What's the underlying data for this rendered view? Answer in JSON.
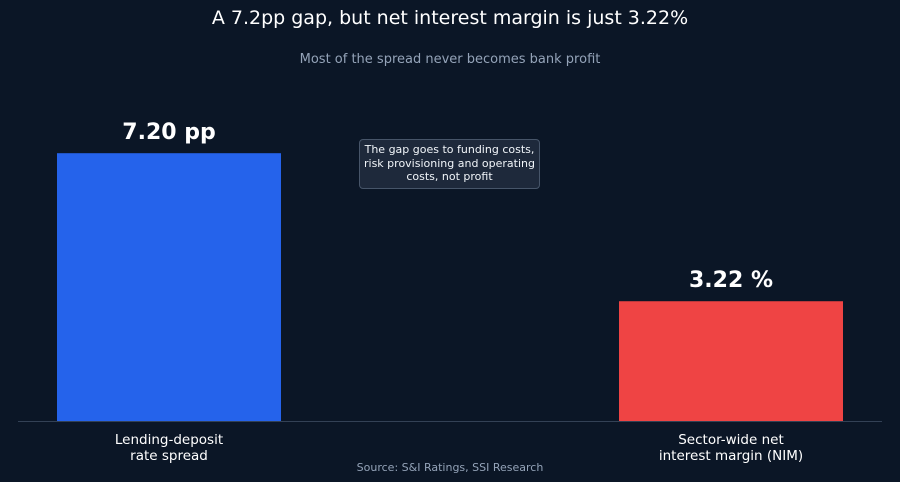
{
  "chart_data": {
    "type": "bar",
    "title": "A 7.2pp gap, but net interest margin is just 3.22%",
    "subtitle": "Most of the spread never becomes bank profit",
    "categories": [
      [
        "Lending-deposit",
        "rate spread"
      ],
      [
        "Sector-wide net",
        "interest margin (NIM)"
      ]
    ],
    "values": [
      7.2,
      3.22
    ],
    "data_labels": [
      "7.20 pp",
      "3.22 %"
    ],
    "colors": [
      "#2563eb",
      "#ef4444"
    ],
    "ylim": [
      0,
      8.2
    ],
    "grid": false,
    "annotation": "The gap goes to funding costs, risk provisioning and operating costs, not profit",
    "source": "Source: S&I Ratings, SSI Research"
  }
}
